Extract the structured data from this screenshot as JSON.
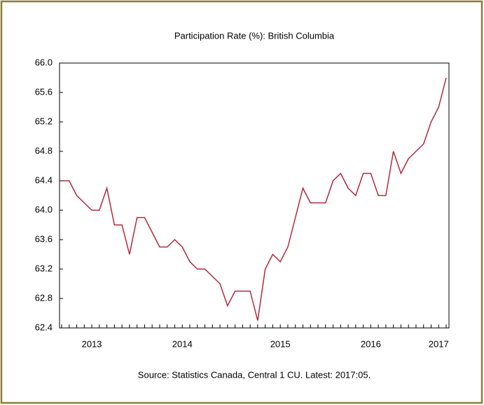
{
  "chart_data": {
    "type": "line",
    "title": "Participation Rate (%): British Columbia",
    "source": "Source: Statistics Canada, Central 1 CU. Latest: 2017:05.",
    "categories": [
      null,
      null,
      null,
      null,
      "2013",
      null,
      null,
      null,
      null,
      null,
      null,
      null,
      null,
      null,
      null,
      null,
      "2014",
      null,
      null,
      null,
      null,
      null,
      null,
      null,
      null,
      null,
      null,
      null,
      null,
      "2015",
      null,
      null,
      null,
      null,
      null,
      null,
      null,
      null,
      null,
      null,
      null,
      "2016",
      null,
      null,
      null,
      null,
      null,
      null,
      null,
      null,
      "2017",
      null
    ],
    "series": [
      {
        "name": "Participation Rate",
        "color": "#b5283c",
        "values": [
          64.4,
          64.4,
          64.2,
          64.1,
          64.0,
          64.0,
          64.3,
          63.8,
          63.8,
          63.4,
          63.9,
          63.9,
          63.7,
          63.5,
          63.5,
          63.6,
          63.5,
          63.3,
          63.2,
          63.2,
          63.1,
          63.0,
          62.7,
          62.9,
          62.9,
          62.9,
          62.5,
          63.2,
          63.4,
          63.3,
          63.5,
          63.9,
          64.3,
          64.1,
          64.1,
          64.1,
          64.4,
          64.5,
          64.3,
          64.2,
          64.5,
          64.5,
          64.2,
          64.2,
          64.8,
          64.5,
          64.7,
          64.8,
          64.9,
          65.2,
          65.4,
          65.8
        ]
      }
    ],
    "ylim": [
      62.4,
      66.0
    ],
    "yticks": [
      {
        "value": 62.4,
        "label": "62.4"
      },
      {
        "value": 62.8,
        "label": "62.8"
      },
      {
        "value": 63.2,
        "label": "63.2"
      },
      {
        "value": 63.6,
        "label": "63.6"
      },
      {
        "value": 64.0,
        "label": "64.0"
      },
      {
        "value": 64.4,
        "label": "64.4"
      },
      {
        "value": 64.8,
        "label": "64.8"
      },
      {
        "value": 65.2,
        "label": "65.2"
      },
      {
        "value": 65.6,
        "label": "65.6"
      },
      {
        "value": 66.0,
        "label": "66.0"
      }
    ]
  }
}
